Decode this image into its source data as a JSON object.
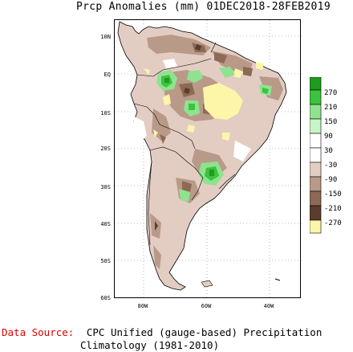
{
  "title": "Prcp Anomalies (mm) 01DEC2018-28FEB2019",
  "axes": {
    "lat_labels": [
      "10N",
      "EQ",
      "10S",
      "20S",
      "30S",
      "40S",
      "50S",
      "60S"
    ],
    "lon_labels": [
      "80W",
      "60W",
      "40W"
    ]
  },
  "legend": {
    "labels": [
      "270",
      "210",
      "150",
      "90",
      "30",
      "-30",
      "-90",
      "-150",
      "-210",
      "-270"
    ],
    "colors": [
      "#1e9c1e",
      "#3dc23d",
      "#8fe28f",
      "#c8f5c8",
      "#ffffff",
      "#ffffff",
      "#e3cdc3",
      "#b99a88",
      "#8c6a55",
      "#5c3c2c",
      "#fdf6a8"
    ]
  },
  "source": {
    "label": "Data Source:",
    "line1": "CPC Unified (gauge-based) Precipitation",
    "line2": "Climatology (1981-2010)"
  },
  "chart_data": {
    "type": "map",
    "variable": "Precipitation anomalies (mm)",
    "period": "01DEC2018-28FEB2019",
    "region": "South America",
    "lat_range": [
      -60,
      15
    ],
    "lon_range": [
      -90,
      -30
    ],
    "contour_levels": [
      -270,
      -210,
      -150,
      -90,
      -30,
      30,
      90,
      150,
      210,
      270
    ]
  }
}
